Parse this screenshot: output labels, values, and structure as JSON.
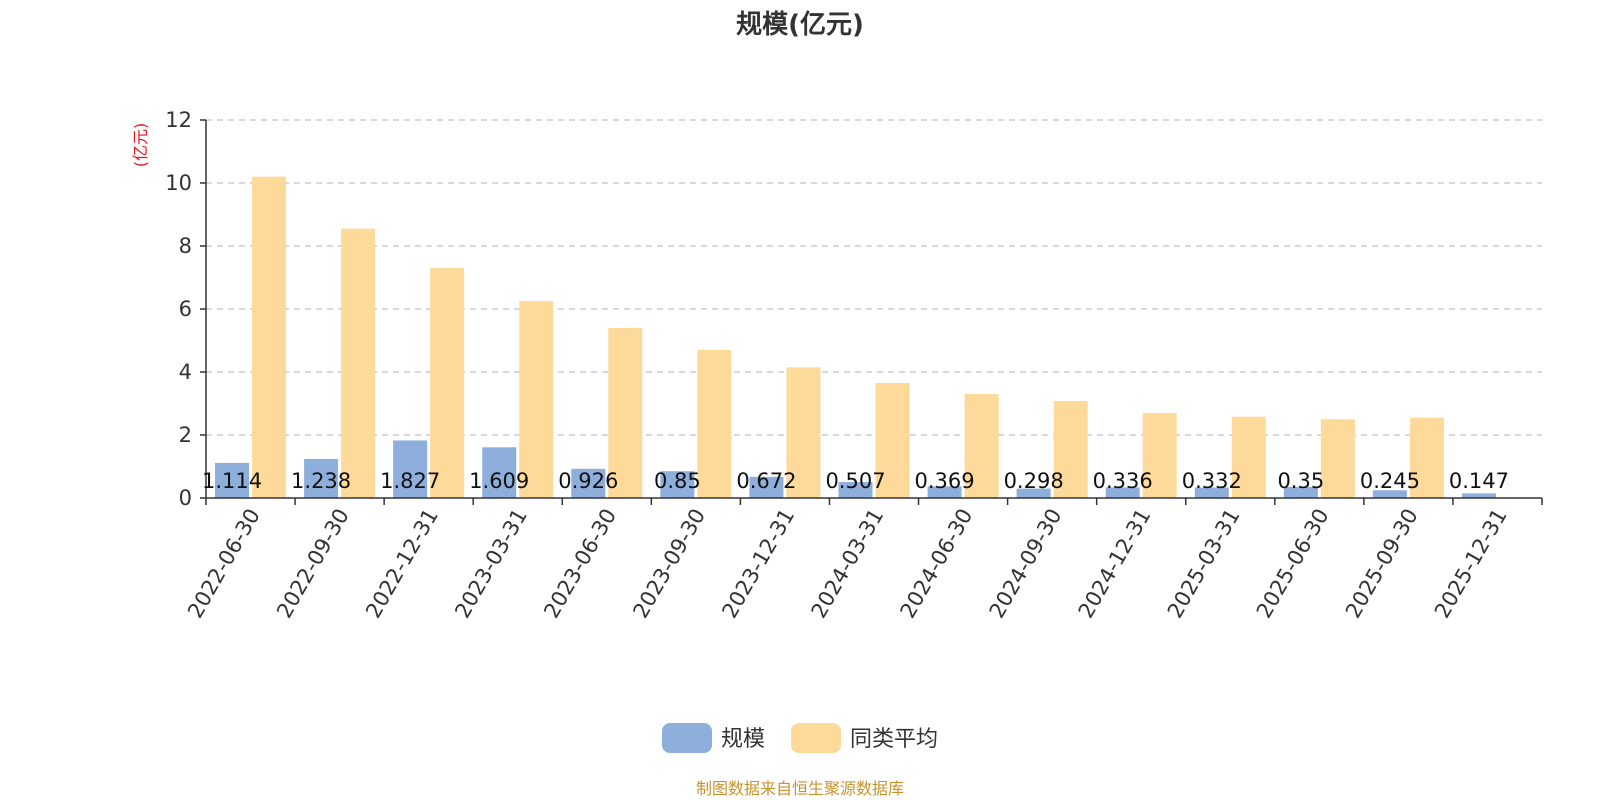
{
  "colors": {
    "series_1": "#8eaedb",
    "series_2": "#fdd99a",
    "axis": "#333333",
    "grid": "#cccccc",
    "unit_label": "#e8141e",
    "source_text": "#c9922e",
    "title": "#333333"
  },
  "chart_data": {
    "type": "bar",
    "title": "规模(亿元)",
    "ylabel": "(亿元)",
    "xlabel": "",
    "ylim": [
      0,
      12
    ],
    "yticks": [
      0,
      2,
      4,
      6,
      8,
      10,
      12
    ],
    "grid": true,
    "legend_position": "bottom-center",
    "categories": [
      "2022-06-30",
      "2022-09-30",
      "2022-12-31",
      "2023-03-31",
      "2023-06-30",
      "2023-09-30",
      "2023-12-31",
      "2024-03-31",
      "2024-06-30",
      "2024-09-30",
      "2024-12-31",
      "2025-03-31",
      "2025-06-30",
      "2025-09-30",
      "2025-12-31"
    ],
    "series": [
      {
        "name": "规模",
        "values": [
          1.114,
          1.238,
          1.827,
          1.609,
          0.926,
          0.85,
          0.672,
          0.507,
          0.369,
          0.298,
          0.336,
          0.332,
          0.35,
          0.245,
          0.147
        ],
        "labels": [
          "1.114",
          "1.238",
          "1.827",
          "1.609",
          "0.926",
          "0.85",
          "0.672",
          "0.507",
          "0.369",
          "0.298",
          "0.336",
          "0.332",
          "0.35",
          "0.245",
          "0.147"
        ]
      },
      {
        "name": "同类平均",
        "values": [
          10.2,
          8.55,
          7.3,
          6.25,
          5.4,
          4.7,
          4.15,
          3.65,
          3.3,
          3.08,
          2.7,
          2.58,
          2.5,
          2.55,
          null
        ]
      }
    ]
  },
  "footer": {
    "source": "制图数据来自恒生聚源数据库"
  }
}
